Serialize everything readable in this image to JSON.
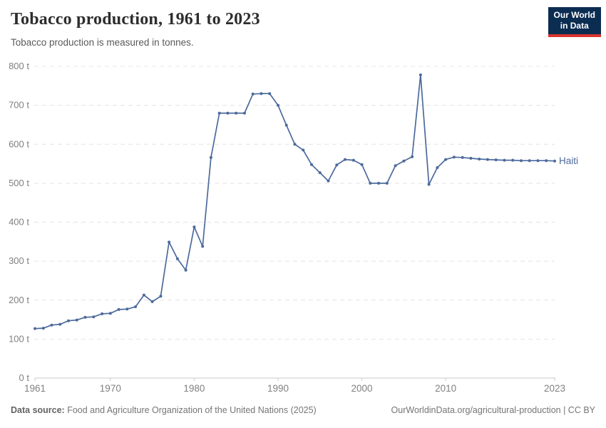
{
  "header": {
    "title": "Tobacco production, 1961 to 2023",
    "subtitle": "Tobacco production is measured in tonnes.",
    "logo": {
      "line1": "Our World",
      "line2": "in Data"
    }
  },
  "chart_data": {
    "type": "line",
    "title": "Tobacco production, 1961 to 2023",
    "ylabel": "tonnes",
    "entity": "Haiti",
    "line_color": "#4C6A9C",
    "grid": "dashed-horizontal",
    "legend_position": "end-of-line",
    "ylim": [
      0,
      800
    ],
    "y_ticks": [
      0,
      100,
      200,
      300,
      400,
      500,
      600,
      700,
      800
    ],
    "y_tick_suffix": " t",
    "x_ticks": [
      1961,
      1970,
      1980,
      1990,
      2000,
      2010,
      2023
    ],
    "years": [
      1961,
      1962,
      1963,
      1964,
      1965,
      1966,
      1967,
      1968,
      1969,
      1970,
      1971,
      1972,
      1973,
      1974,
      1975,
      1976,
      1977,
      1978,
      1979,
      1980,
      1981,
      1982,
      1983,
      1984,
      1985,
      1986,
      1987,
      1988,
      1989,
      1990,
      1991,
      1992,
      1993,
      1994,
      1995,
      1996,
      1997,
      1998,
      1999,
      2000,
      2001,
      2002,
      2003,
      2004,
      2005,
      2006,
      2007,
      2008,
      2009,
      2010,
      2011,
      2012,
      2013,
      2014,
      2015,
      2016,
      2017,
      2018,
      2019,
      2020,
      2021,
      2022,
      2023
    ],
    "values": [
      127,
      128,
      136,
      138,
      147,
      149,
      156,
      157,
      165,
      166,
      176,
      177,
      183,
      213,
      196,
      210,
      349,
      306,
      277,
      388,
      338,
      566,
      680,
      680,
      680,
      680,
      729,
      730,
      730,
      700,
      649,
      600,
      585,
      548,
      527,
      506,
      547,
      561,
      559,
      548,
      500,
      500,
      500,
      545,
      557,
      568,
      778,
      497,
      540,
      561,
      567,
      566,
      564,
      562,
      561,
      560,
      559,
      559,
      558,
      558,
      558,
      558,
      557
    ]
  },
  "footer": {
    "source_label": "Data source:",
    "source_text": " Food and Agriculture Organization of the United Nations (2025)",
    "link_text": "OurWorldinData.org/agricultural-production | CC BY"
  },
  "colors": {
    "line": "#4C6A9C",
    "logo_bg": "#0c2d52",
    "logo_accent": "#d8352f",
    "gridline": "#e4e4e4",
    "axis": "#c9c9c9",
    "tick_label": "#808080"
  }
}
